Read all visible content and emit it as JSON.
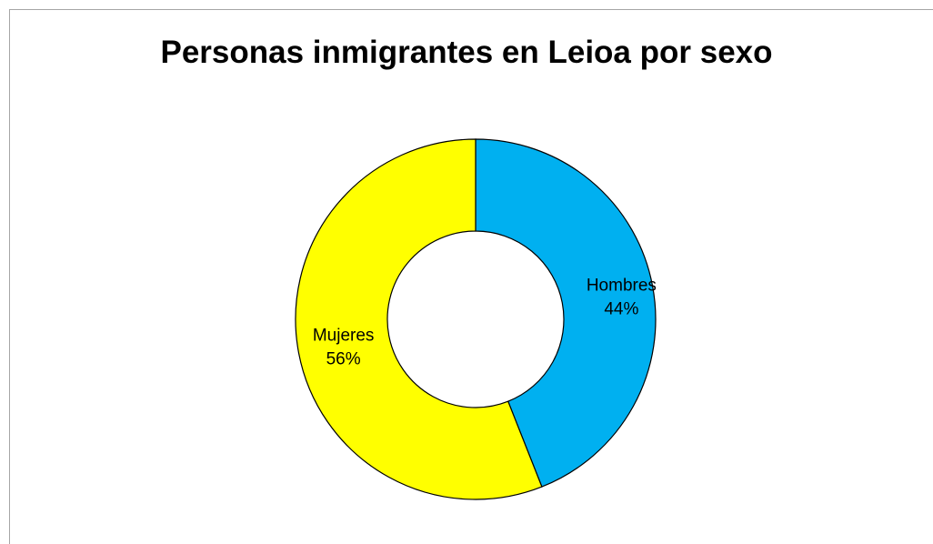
{
  "chart_data": {
    "type": "pie",
    "variant": "donut",
    "title": "Personas inmigrantes en Leioa por sexo",
    "slices": [
      {
        "label": "Hombres",
        "value": 44,
        "value_label": "44%",
        "color": "#00b0f0"
      },
      {
        "label": "Mujeres",
        "value": 56,
        "value_label": "56%",
        "color": "#ffff00"
      }
    ],
    "start_angle": "12 o'clock",
    "direction": "clockwise",
    "legend": "none",
    "data_labels": "inside"
  }
}
